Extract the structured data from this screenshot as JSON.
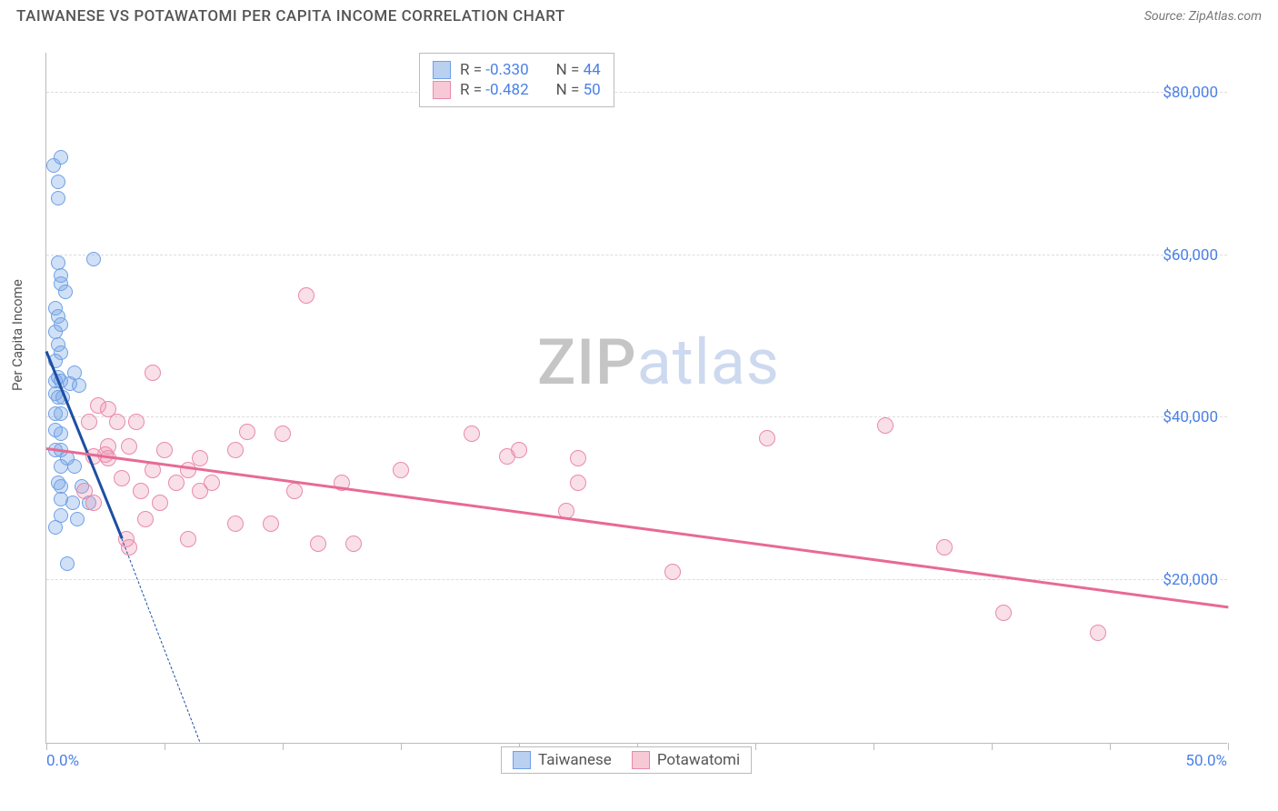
{
  "title": "TAIWANESE VS POTAWATOMI PER CAPITA INCOME CORRELATION CHART",
  "source_label": "Source: ZipAtlas.com",
  "ylabel": "Per Capita Income",
  "watermark": {
    "part1": "ZIP",
    "part2": "atlas"
  },
  "xaxis": {
    "min_label": "0.0%",
    "max_label": "50.0%",
    "min": 0,
    "max": 50,
    "tick_positions": [
      0,
      5,
      10,
      15,
      20,
      25,
      30,
      35,
      40,
      45,
      50
    ]
  },
  "yaxis": {
    "min": 0,
    "max": 85000,
    "gridlines": [
      {
        "y": 20000,
        "label": "$20,000"
      },
      {
        "y": 40000,
        "label": "$40,000"
      },
      {
        "y": 60000,
        "label": "$60,000"
      },
      {
        "y": 80000,
        "label": "$80,000"
      }
    ]
  },
  "legend_top": {
    "rows": [
      {
        "swatch_fill": "#b9d0f1",
        "swatch_border": "#6fa0e6",
        "r_label": "R =",
        "r_value": "-0.330",
        "n_label": "N =",
        "n_value": "44"
      },
      {
        "swatch_fill": "#f7c8d6",
        "swatch_border": "#e98aab",
        "r_label": "R =",
        "r_value": "-0.482",
        "n_label": "N =",
        "n_value": "50"
      }
    ]
  },
  "legend_bottom": {
    "items": [
      {
        "swatch_fill": "#b9d0f1",
        "swatch_border": "#6fa0e6",
        "label": "Taiwanese"
      },
      {
        "swatch_fill": "#f7c8d6",
        "swatch_border": "#e98aab",
        "label": "Potawatomi"
      }
    ]
  },
  "series": [
    {
      "name": "Taiwanese",
      "fill": "rgba(120,165,230,0.35)",
      "stroke": "#6fa0e6",
      "marker_radius": 8,
      "trend_color": "#1d4fa3",
      "trend": {
        "x1": 0,
        "y1": 48000,
        "x2": 3.2,
        "y2": 25000
      },
      "trend_dash": {
        "x1": 3.2,
        "y1": 25000,
        "x2": 6.5,
        "y2": 0
      },
      "points": [
        [
          0.3,
          71000
        ],
        [
          0.6,
          72000
        ],
        [
          0.5,
          69000
        ],
        [
          0.5,
          67000
        ],
        [
          2.0,
          59500
        ],
        [
          0.5,
          59000
        ],
        [
          0.6,
          57500
        ],
        [
          0.6,
          56500
        ],
        [
          0.8,
          55500
        ],
        [
          0.4,
          53500
        ],
        [
          0.5,
          52500
        ],
        [
          0.6,
          51500
        ],
        [
          0.4,
          50500
        ],
        [
          0.5,
          49000
        ],
        [
          0.6,
          48000
        ],
        [
          0.4,
          47000
        ],
        [
          1.2,
          45500
        ],
        [
          0.5,
          45000
        ],
        [
          0.4,
          44500
        ],
        [
          0.6,
          44500
        ],
        [
          1.0,
          44200
        ],
        [
          1.4,
          44000
        ],
        [
          0.4,
          43000
        ],
        [
          0.5,
          42500
        ],
        [
          0.7,
          42500
        ],
        [
          0.4,
          40500
        ],
        [
          0.6,
          40500
        ],
        [
          0.4,
          38500
        ],
        [
          0.6,
          38000
        ],
        [
          0.4,
          36000
        ],
        [
          0.6,
          36000
        ],
        [
          0.9,
          35000
        ],
        [
          0.6,
          34000
        ],
        [
          1.2,
          34000
        ],
        [
          0.5,
          32000
        ],
        [
          0.6,
          31500
        ],
        [
          1.5,
          31500
        ],
        [
          0.6,
          30000
        ],
        [
          1.1,
          29500
        ],
        [
          1.8,
          29500
        ],
        [
          0.6,
          28000
        ],
        [
          1.3,
          27500
        ],
        [
          0.4,
          26500
        ],
        [
          0.9,
          22000
        ]
      ]
    },
    {
      "name": "Potawatomi",
      "fill": "rgba(235,150,180,0.30)",
      "stroke": "#e98aab",
      "marker_radius": 9,
      "trend_color": "#e86a93",
      "trend": {
        "x1": 0,
        "y1": 36000,
        "x2": 50,
        "y2": 16500
      },
      "points": [
        [
          11.0,
          55000
        ],
        [
          4.5,
          45500
        ],
        [
          2.2,
          41500
        ],
        [
          2.6,
          41000
        ],
        [
          1.8,
          39500
        ],
        [
          3.0,
          39500
        ],
        [
          3.8,
          39500
        ],
        [
          35.5,
          39000
        ],
        [
          8.5,
          38200
        ],
        [
          10.0,
          38000
        ],
        [
          18.0,
          38000
        ],
        [
          2.6,
          36500
        ],
        [
          3.5,
          36500
        ],
        [
          5.0,
          36000
        ],
        [
          8.0,
          36000
        ],
        [
          20.0,
          36000
        ],
        [
          30.5,
          37500
        ],
        [
          2.0,
          35200
        ],
        [
          2.6,
          35000
        ],
        [
          6.5,
          35000
        ],
        [
          19.5,
          35200
        ],
        [
          22.5,
          35000
        ],
        [
          4.5,
          33500
        ],
        [
          6.0,
          33500
        ],
        [
          15.0,
          33500
        ],
        [
          3.2,
          32500
        ],
        [
          5.5,
          32000
        ],
        [
          7.0,
          32000
        ],
        [
          12.5,
          32000
        ],
        [
          22.5,
          32000
        ],
        [
          1.6,
          31000
        ],
        [
          4.0,
          31000
        ],
        [
          6.5,
          31000
        ],
        [
          10.5,
          31000
        ],
        [
          2.0,
          29500
        ],
        [
          4.8,
          29500
        ],
        [
          22.0,
          28500
        ],
        [
          8.0,
          27000
        ],
        [
          9.5,
          27000
        ],
        [
          3.4,
          25000
        ],
        [
          6.0,
          25000
        ],
        [
          11.5,
          24500
        ],
        [
          13.0,
          24500
        ],
        [
          3.5,
          24000
        ],
        [
          38.0,
          24000
        ],
        [
          26.5,
          21000
        ],
        [
          40.5,
          16000
        ],
        [
          44.5,
          13500
        ],
        [
          2.5,
          35500
        ],
        [
          4.2,
          27500
        ]
      ]
    }
  ],
  "colors": {
    "axis": "#bbbbbb",
    "grid": "#dddddd",
    "tick_text": "#4a80e8",
    "title_text": "#555555"
  }
}
